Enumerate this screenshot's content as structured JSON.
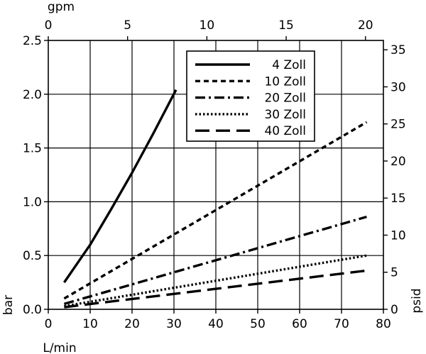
{
  "chart_data": {
    "type": "line",
    "x_bottom": {
      "label": "L/min",
      "range": [
        0,
        80
      ],
      "ticks": [
        0,
        10,
        20,
        30,
        40,
        50,
        60,
        70,
        80
      ]
    },
    "x_top": {
      "label": "gpm",
      "range": [
        0,
        21.13
      ],
      "ticks": [
        0,
        5,
        10,
        15,
        20
      ]
    },
    "y_left": {
      "label": "bar",
      "range": [
        0,
        2.5
      ],
      "ticks": [
        "0.0",
        "0.5",
        "1.0",
        "1.5",
        "2.0",
        "2.5"
      ]
    },
    "y_right": {
      "label": "psid",
      "range": [
        0,
        36.26
      ],
      "ticks": [
        0,
        5,
        10,
        15,
        20,
        25,
        30,
        35
      ]
    },
    "grid": true,
    "legend_position": "top-right",
    "series": [
      {
        "name": "4 Zoll",
        "style": "solid",
        "x": [
          3.8,
          10,
          15,
          20,
          25,
          30.5
        ],
        "y": [
          0.25,
          0.6,
          0.93,
          1.27,
          1.63,
          2.04
        ]
      },
      {
        "name": "10 Zoll",
        "style": "dashed",
        "x": [
          3.8,
          76
        ],
        "y": [
          0.1,
          1.74
        ]
      },
      {
        "name": "20 Zoll",
        "style": "dash-dot",
        "x": [
          3.8,
          76
        ],
        "y": [
          0.05,
          0.86
        ]
      },
      {
        "name": "30 Zoll",
        "style": "dotted",
        "x": [
          3.8,
          76
        ],
        "y": [
          0.03,
          0.5
        ]
      },
      {
        "name": "40 Zoll",
        "style": "long-dash",
        "x": [
          3.8,
          76
        ],
        "y": [
          0.02,
          0.36
        ]
      }
    ]
  }
}
